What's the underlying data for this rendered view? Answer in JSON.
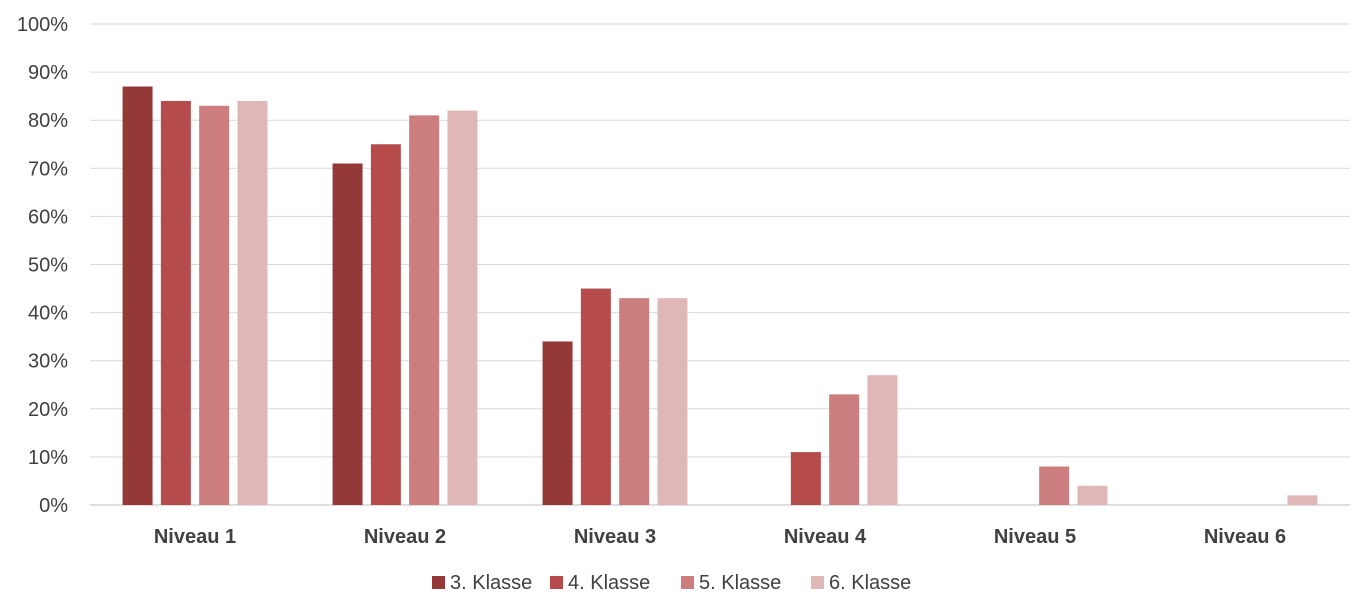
{
  "chart_data": {
    "type": "bar",
    "categories": [
      "Niveau 1",
      "Niveau 2",
      "Niveau 3",
      "Niveau 4",
      "Niveau 5",
      "Niveau 6"
    ],
    "series": [
      {
        "name": "3. Klasse",
        "color": "#943838",
        "values": [
          87,
          71,
          34,
          0,
          0,
          0
        ]
      },
      {
        "name": "4. Klasse",
        "color": "#b54b4b",
        "values": [
          84,
          75,
          45,
          11,
          0,
          0
        ]
      },
      {
        "name": "5. Klasse",
        "color": "#cc7e7e",
        "values": [
          83,
          81,
          43,
          23,
          8,
          0
        ]
      },
      {
        "name": "6. Klasse",
        "color": "#e0b7b7",
        "values": [
          84,
          82,
          43,
          27,
          4,
          2
        ]
      }
    ],
    "ylim": [
      0,
      100
    ],
    "yticks": [
      "0%",
      "10%",
      "20%",
      "30%",
      "40%",
      "50%",
      "60%",
      "70%",
      "80%",
      "90%",
      "100%"
    ],
    "title": "",
    "xlabel": "",
    "ylabel": "",
    "grid": true,
    "legend_position": "bottom"
  }
}
